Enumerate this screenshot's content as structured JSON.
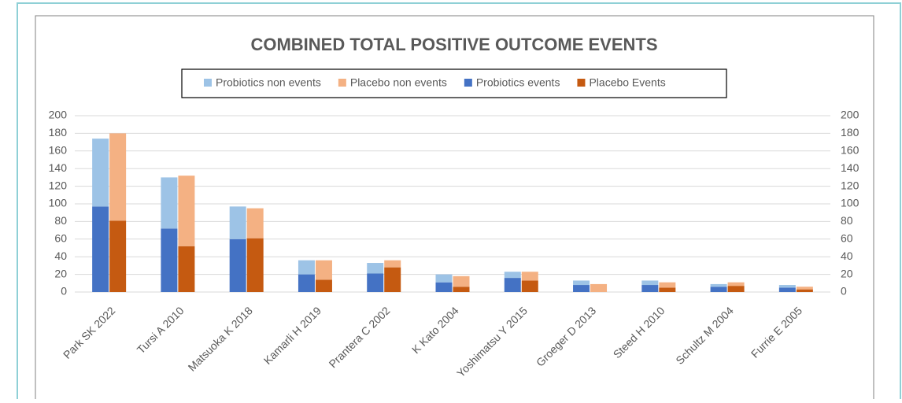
{
  "chart_data": {
    "type": "bar",
    "title": "COMBINED TOTAL POSITIVE OUTCOME EVENTS",
    "categories": [
      "Park SK 2022",
      "Tursi A 2010",
      "Matsuoka K 2018",
      "Kamarli H 2019",
      "Prantera C 2002",
      "K Kato 2004",
      "Yoshimatsu Y 2015",
      "Groeger D 2013",
      "Steed H 2010",
      "Schultz M 2004",
      "Furrie E 2005"
    ],
    "series": [
      {
        "name": "Probiotics non events",
        "color": "#9dc3e6",
        "values": [
          77,
          58,
          37,
          16,
          12,
          9,
          7,
          5,
          5,
          3,
          3
        ]
      },
      {
        "name": "Placebo non events",
        "color": "#f4b183",
        "values": [
          99,
          80,
          34,
          22,
          8,
          12,
          10,
          9,
          6,
          4,
          3
        ]
      },
      {
        "name": "Probiotics events",
        "color": "#4472c4",
        "values": [
          97,
          72,
          60,
          20,
          21,
          11,
          16,
          8,
          8,
          6,
          5
        ]
      },
      {
        "name": "Placebo Events",
        "color": "#c55a11",
        "values": [
          81,
          52,
          61,
          14,
          28,
          6,
          13,
          0,
          5,
          7,
          3
        ]
      }
    ],
    "ylim": [
      0,
      200
    ],
    "yticks": [
      0,
      20,
      40,
      60,
      80,
      100,
      120,
      140,
      160,
      180,
      200
    ],
    "y2lim": [
      0,
      200
    ],
    "y2ticks": [
      0,
      20,
      40,
      60,
      80,
      100,
      120,
      140,
      160,
      180,
      200
    ],
    "grid": true,
    "legend": "top"
  }
}
